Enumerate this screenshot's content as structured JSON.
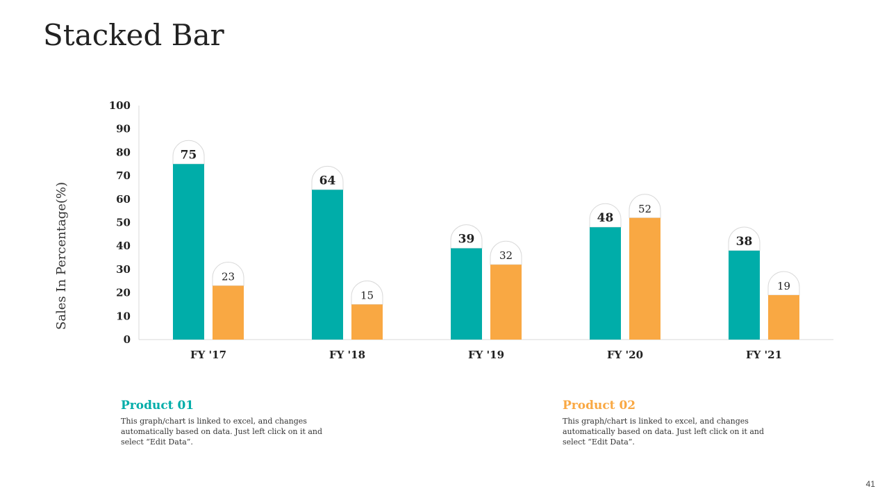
{
  "page": {
    "title": "Stacked Bar",
    "page_number": "41"
  },
  "colors": {
    "product1": "#00ADA9",
    "product2": "#F9A843",
    "axis": "#D9D9D9",
    "label_bubble_border": "#D9D9D9"
  },
  "legend": [
    {
      "name": "Product 01",
      "description": "This graph/chart is linked to excel, and changes automatically based on data. Just left click on it and select “Edit Data”."
    },
    {
      "name": "Product 02",
      "description": "This graph/chart is linked to excel, and changes automatically based on data. Just left click on it and select “Edit Data”."
    }
  ],
  "chart_data": {
    "type": "bar",
    "title": "",
    "xlabel": "",
    "ylabel": "Sales In Percentage(%)",
    "ylim": [
      0,
      100
    ],
    "yticks": [
      0,
      10,
      20,
      30,
      40,
      50,
      60,
      70,
      80,
      90,
      100
    ],
    "categories": [
      "FY '17",
      "FY '18",
      "FY '19",
      "FY '20",
      "FY '21"
    ],
    "series": [
      {
        "name": "Product 01",
        "values": [
          75,
          64,
          39,
          48,
          38
        ]
      },
      {
        "name": "Product 02",
        "values": [
          23,
          15,
          32,
          52,
          19
        ]
      }
    ]
  }
}
